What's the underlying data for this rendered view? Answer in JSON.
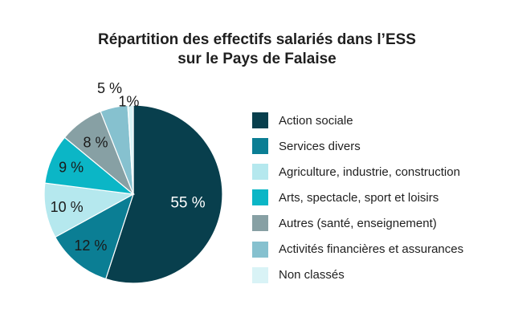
{
  "chart_data": {
    "type": "pie",
    "title_line1": "Répartition des effectifs salariés dans l’ESS",
    "title_line2": "sur le Pays de Falaise",
    "categories": [
      "Action sociale",
      "Services divers",
      "Agriculture, industrie, construction",
      "Arts, spectacle, sport et loisirs",
      "Autres (santé, enseignement)",
      "Activités financières et assurances",
      "Non classés"
    ],
    "values": [
      55,
      12,
      10,
      9,
      8,
      5,
      1
    ],
    "labels": [
      "55 %",
      "12 %",
      "10 %",
      "9 %",
      "8 %",
      "5 %",
      "1%"
    ],
    "colors": [
      "#083f4d",
      "#0b7e94",
      "#b5e8ee",
      "#0bb6c6",
      "#87a0a4",
      "#86c1cf",
      "#d9f3f6"
    ],
    "label_colors": [
      "#ffffff",
      "#1a1a1a",
      "#1a1a1a",
      "#1a1a1a",
      "#1a1a1a",
      "#1a1a1a",
      "#1a1a1a"
    ],
    "legend_position": "right"
  }
}
